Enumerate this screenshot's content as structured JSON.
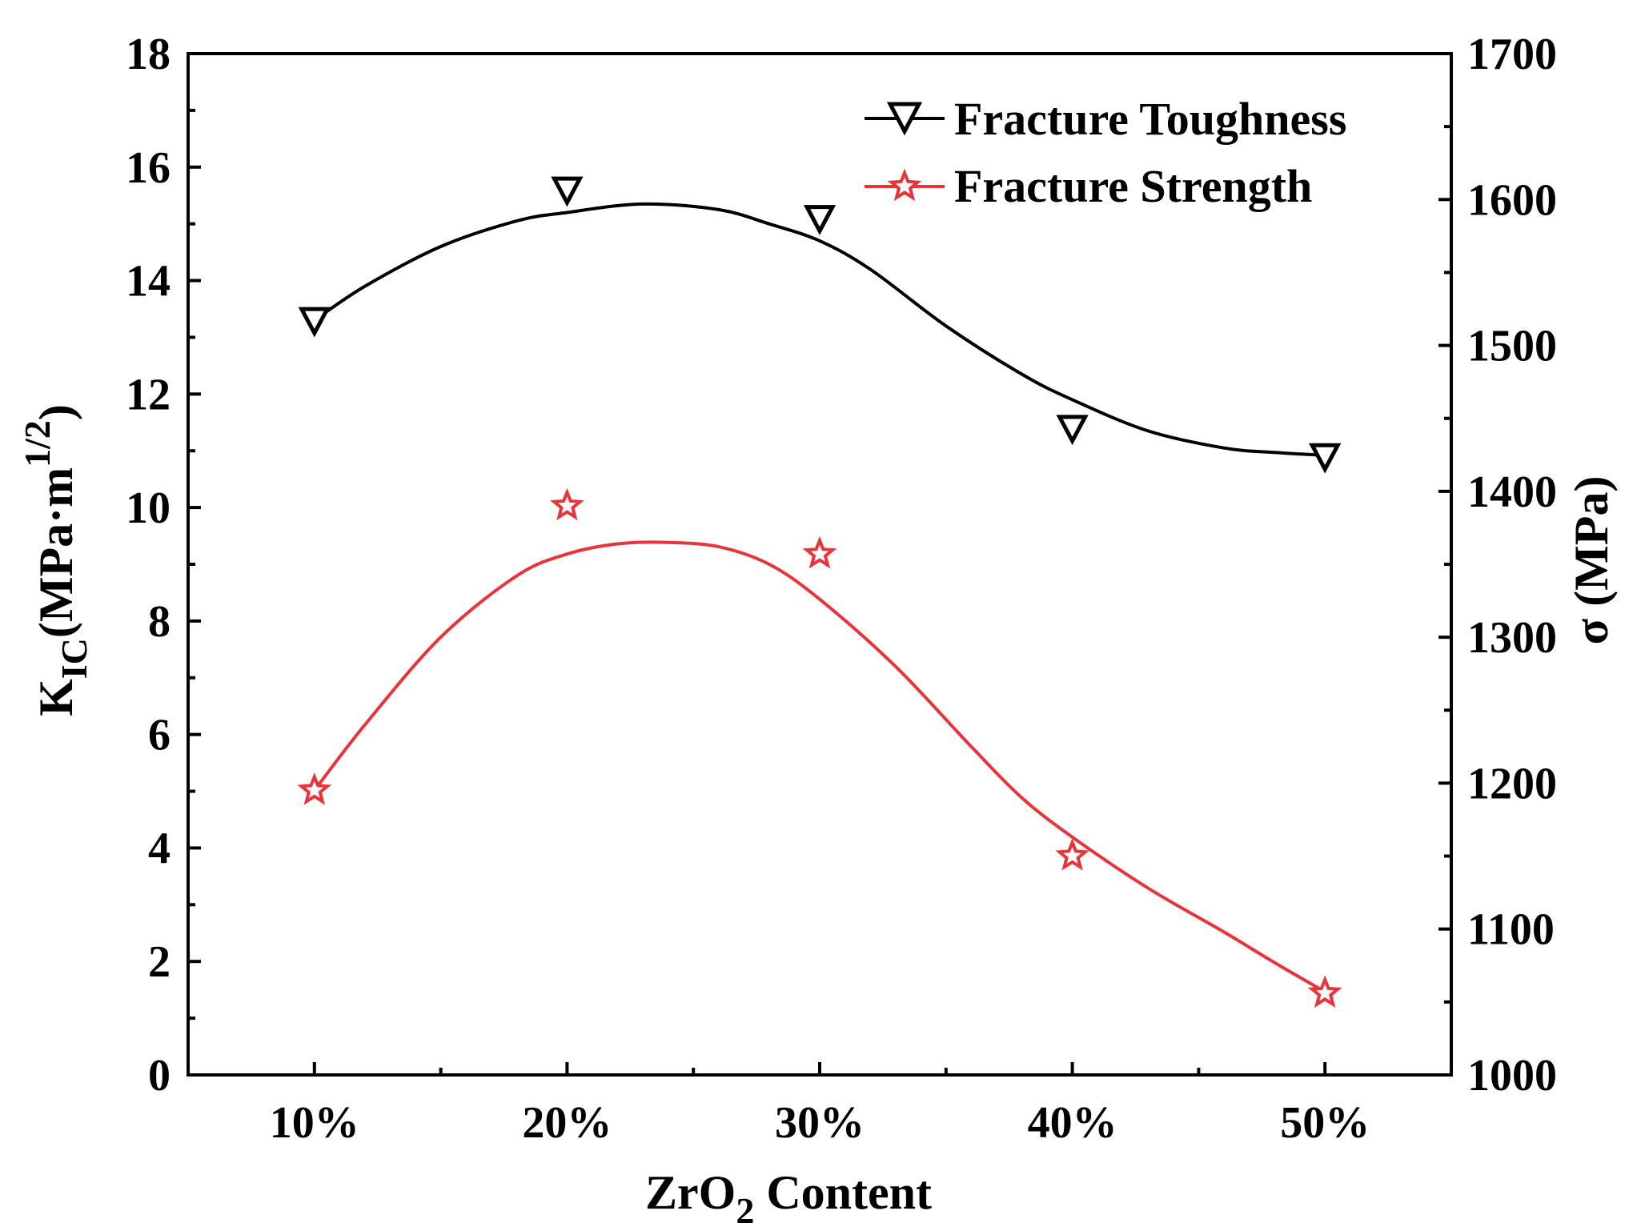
{
  "chart_data": {
    "type": "line",
    "x": [
      "10%",
      "20%",
      "30%",
      "40%",
      "50%"
    ],
    "x_numeric": [
      10,
      20,
      30,
      40,
      50
    ],
    "xlim": [
      5,
      55
    ],
    "xlabel": {
      "main": "ZrO",
      "sub": "2",
      "rest": " Content"
    },
    "y_left": {
      "label": {
        "main": "K",
        "sub": "IC",
        "rest": "(MPa·m",
        "sup": "1/2",
        "close": ")"
      },
      "ylim": [
        0,
        18
      ],
      "ticks": [
        "0",
        "2",
        "4",
        "6",
        "8",
        "10",
        "12",
        "14",
        "16",
        "18"
      ]
    },
    "y_right": {
      "label": "σ (MPa)",
      "ylim": [
        1000,
        1700
      ],
      "ticks": [
        "1000",
        "1100",
        "1200",
        "1300",
        "1400",
        "1500",
        "1600",
        "1700"
      ]
    },
    "series": [
      {
        "name": "Fracture Toughness",
        "axis": "left",
        "marker": "triangle-down",
        "color": "#000000",
        "values": [
          13.3,
          15.6,
          15.1,
          11.4,
          10.9
        ],
        "fit_curve": [
          [
            10,
            13.3
          ],
          [
            12,
            13.9
          ],
          [
            15,
            14.6
          ],
          [
            18,
            15.05
          ],
          [
            20,
            15.2
          ],
          [
            23,
            15.35
          ],
          [
            26,
            15.25
          ],
          [
            28,
            15.0
          ],
          [
            30,
            14.7
          ],
          [
            32,
            14.2
          ],
          [
            35,
            13.2
          ],
          [
            38,
            12.35
          ],
          [
            40,
            11.9
          ],
          [
            43,
            11.35
          ],
          [
            46,
            11.05
          ],
          [
            48,
            10.97
          ],
          [
            50,
            10.92
          ]
        ]
      },
      {
        "name": "Fracture Strength",
        "axis": "right",
        "marker": "star",
        "color": "#e8343a",
        "values": [
          1195,
          1390,
          1357,
          1150,
          1056
        ],
        "fit_curve": [
          [
            10,
            1195
          ],
          [
            12,
            1240
          ],
          [
            15,
            1300
          ],
          [
            18,
            1342
          ],
          [
            20,
            1357
          ],
          [
            22,
            1364
          ],
          [
            24,
            1365
          ],
          [
            26,
            1362
          ],
          [
            28,
            1350
          ],
          [
            30,
            1326
          ],
          [
            33,
            1280
          ],
          [
            36,
            1225
          ],
          [
            38,
            1190
          ],
          [
            40,
            1163
          ],
          [
            43,
            1128
          ],
          [
            46,
            1098
          ],
          [
            48,
            1077
          ],
          [
            50,
            1057
          ]
        ]
      }
    ],
    "legend_position": "top-right"
  }
}
